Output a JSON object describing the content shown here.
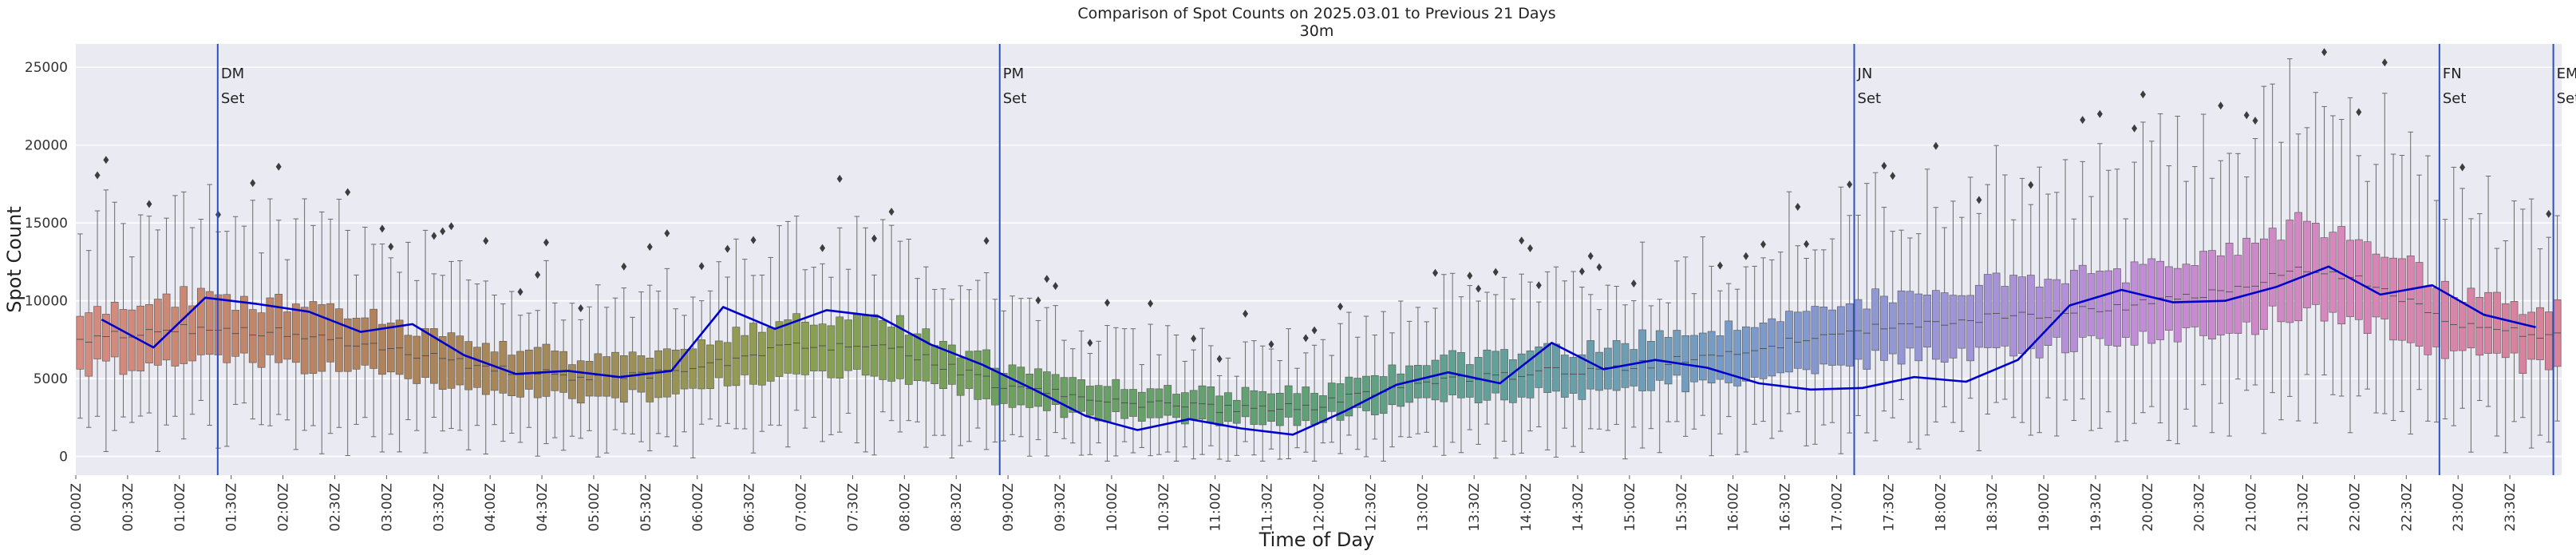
{
  "chart_data": {
    "type": "box",
    "title": "Comparison of Spot Counts on 2025.03.01 to Previous 21 Days",
    "subtitle": "30m",
    "xlabel": "Time of Day",
    "ylabel": "Spot Count",
    "ylim": [
      -1200,
      26500
    ],
    "yticks": [
      0,
      5000,
      10000,
      15000,
      20000,
      25000
    ],
    "x_tick_labels": [
      "00:00Z",
      "00:30Z",
      "01:00Z",
      "01:30Z",
      "02:00Z",
      "02:30Z",
      "03:00Z",
      "03:30Z",
      "04:00Z",
      "04:30Z",
      "05:00Z",
      "05:30Z",
      "06:00Z",
      "06:30Z",
      "07:00Z",
      "07:30Z",
      "08:00Z",
      "08:30Z",
      "09:00Z",
      "09:30Z",
      "10:00Z",
      "10:30Z",
      "11:00Z",
      "11:30Z",
      "12:00Z",
      "12:30Z",
      "13:00Z",
      "13:30Z",
      "14:00Z",
      "14:30Z",
      "15:00Z",
      "15:30Z",
      "16:00Z",
      "16:30Z",
      "17:00Z",
      "17:30Z",
      "18:00Z",
      "18:30Z",
      "19:00Z",
      "19:30Z",
      "20:00Z",
      "20:30Z",
      "21:00Z",
      "21:30Z",
      "22:00Z",
      "22:30Z",
      "23:00Z",
      "23:30Z"
    ],
    "x_range_hours": [
      0,
      24
    ],
    "grid": true,
    "events": [
      {
        "label_1": "DM",
        "label_2": "Set",
        "hour": 1.37
      },
      {
        "label_1": "PM",
        "label_2": "Set",
        "hour": 8.92
      },
      {
        "label_1": "JN",
        "label_2": "Set",
        "hour": 17.17
      },
      {
        "label_1": "FN",
        "label_2": "Set",
        "hour": 22.82
      },
      {
        "label_1": "EM",
        "label_2": "Set",
        "hour": 23.92
      }
    ],
    "box_medians_profile_hours": [
      0,
      1,
      2,
      3,
      4,
      5,
      6,
      7,
      8,
      9,
      10,
      11,
      12,
      13,
      14,
      15,
      16,
      17,
      18,
      19,
      20,
      21,
      21.5,
      22,
      23,
      24
    ],
    "box_medians_profile": [
      7500,
      8200,
      8000,
      7000,
      5600,
      5000,
      5600,
      7200,
      6800,
      4400,
      3600,
      3100,
      3300,
      4900,
      5300,
      5800,
      6600,
      7900,
      8700,
      9100,
      9800,
      11000,
      12200,
      11500,
      8600,
      7600
    ],
    "current_day_series": {
      "color": "#0000cc",
      "hours": [
        0,
        0.5,
        1,
        1.5,
        2,
        2.5,
        3,
        3.5,
        4,
        4.5,
        5,
        5.5,
        6,
        6.5,
        7,
        7.5,
        8,
        8.5,
        9,
        9.5,
        10,
        10.5,
        11,
        11.5,
        12,
        12.5,
        13,
        13.5,
        14,
        14.5,
        15,
        15.5,
        16,
        16.5,
        17,
        17.5,
        18,
        18.5,
        19,
        19.5,
        20,
        20.5,
        21,
        21.5,
        22,
        22.5,
        23,
        23.5
      ],
      "values": [
        8800,
        7000,
        10200,
        9800,
        9300,
        8000,
        8500,
        6500,
        5300,
        5500,
        5100,
        5500,
        9600,
        8200,
        9400,
        9000,
        7200,
        5900,
        4300,
        2600,
        1700,
        2400,
        1800,
        1400,
        2900,
        4600,
        5400,
        4700,
        7300,
        5600,
        6200,
        5700,
        4700,
        4300,
        4400,
        5100,
        4800,
        6200,
        9700,
        10700,
        9900,
        10000,
        10900,
        12200,
        10400,
        11000,
        9100,
        8300
      ]
    }
  }
}
